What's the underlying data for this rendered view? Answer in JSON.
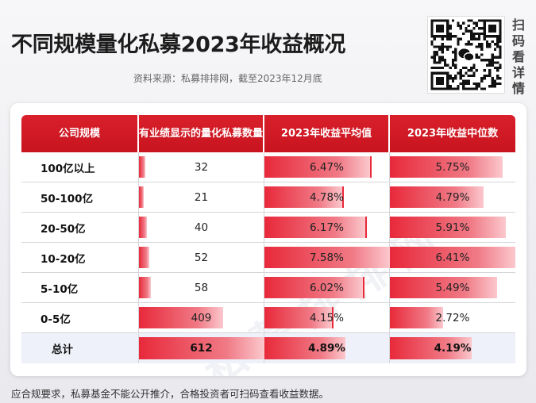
{
  "header": {
    "title": "不同规模量化私募2023年收益概况",
    "source": "资料来源：私募排排网，截至2023年12月底"
  },
  "qr": {
    "icon": "wechat-qr-code-icon",
    "side_chars": [
      "扫",
      "码",
      "看",
      "详",
      "情"
    ]
  },
  "table": {
    "columns": [
      "公司规模",
      "有业绩显示的\n量化私募数量",
      "2023年收益平均值",
      "2023年收益中位数"
    ],
    "rows": [
      {
        "name": "100亿以上",
        "count": "32",
        "avg": "6.47%",
        "median": "5.75%",
        "count_v": 32,
        "avg_v": 6.47,
        "median_v": 5.75
      },
      {
        "name": "50-100亿",
        "count": "21",
        "avg": "4.78%",
        "median": "4.79%",
        "count_v": 21,
        "avg_v": 4.78,
        "median_v": 4.79
      },
      {
        "name": "20-50亿",
        "count": "40",
        "avg": "6.17%",
        "median": "5.91%",
        "count_v": 40,
        "avg_v": 6.17,
        "median_v": 5.91
      },
      {
        "name": "10-20亿",
        "count": "52",
        "avg": "7.58%",
        "median": "6.41%",
        "count_v": 52,
        "avg_v": 7.58,
        "median_v": 6.41
      },
      {
        "name": "5-10亿",
        "count": "58",
        "avg": "6.02%",
        "median": "5.49%",
        "count_v": 58,
        "avg_v": 6.02,
        "median_v": 5.49
      },
      {
        "name": "0-5亿",
        "count": "409",
        "avg": "4.15%",
        "median": "2.72%",
        "count_v": 409,
        "avg_v": 4.15,
        "median_v": 2.72
      }
    ],
    "total": {
      "name": "总计",
      "count": "612",
      "avg": "4.89%",
      "median": "4.19%",
      "count_v": 612,
      "avg_v": 4.89,
      "median_v": 4.19
    },
    "bar_max": {
      "count": 612,
      "avg": 7.58,
      "median": 6.41
    },
    "bar_color": "#e8293a",
    "header_color": "#d9202b"
  },
  "watermark": "私募排排网",
  "footer": "应合规要求，私募基金不能公开推介，合格投资者可扫码查看收益数据。"
}
